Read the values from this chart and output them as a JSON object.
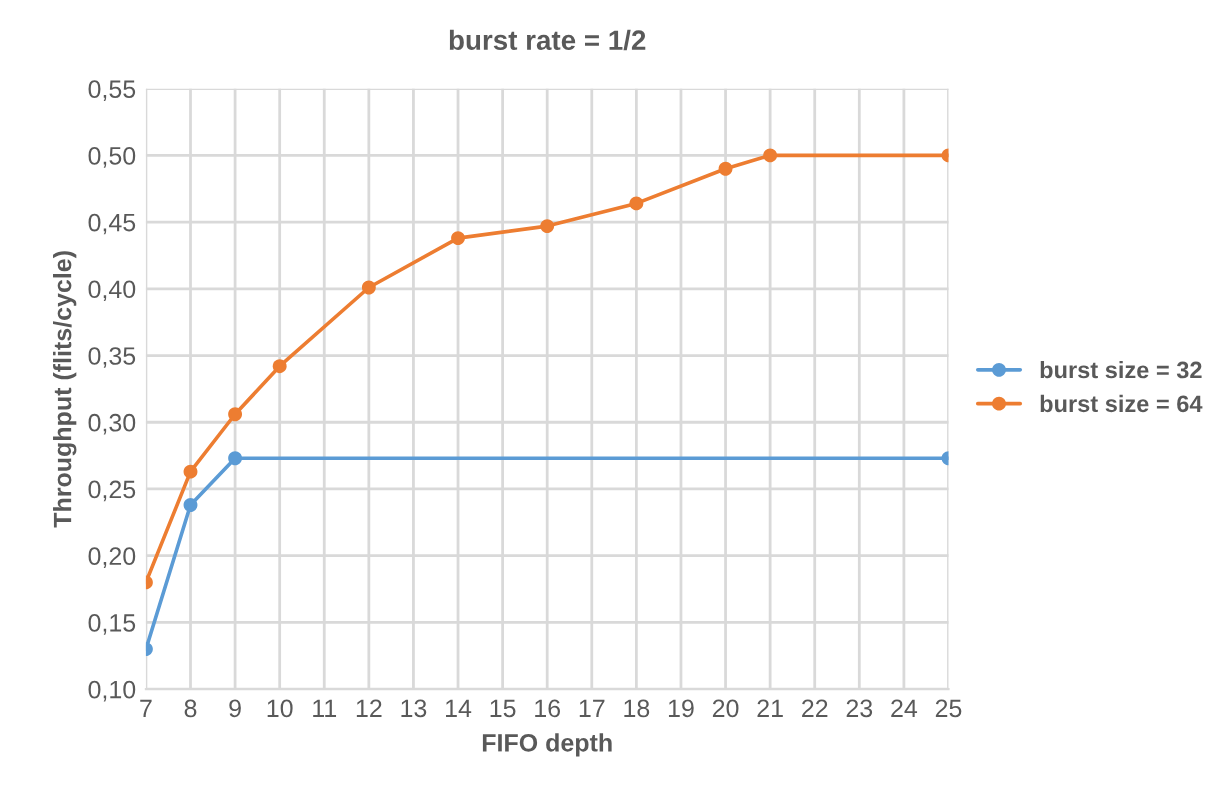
{
  "chart_data": {
    "type": "line",
    "title": "burst rate = 1/2",
    "xlabel": "FIFO depth",
    "ylabel": "Throughput (flits/cycle)",
    "series": [
      {
        "name": "burst size = 32",
        "color": "#5b9bd5",
        "x": [
          7,
          8,
          9,
          25
        ],
        "values": [
          0.13,
          0.238,
          0.273,
          0.273
        ]
      },
      {
        "name": "burst size = 64",
        "color": "#ed7d31",
        "x": [
          7,
          8,
          9,
          10,
          12,
          14,
          16,
          18,
          20,
          21,
          25
        ],
        "values": [
          0.18,
          0.263,
          0.306,
          0.342,
          0.401,
          0.438,
          0.447,
          0.464,
          0.49,
          0.5,
          0.5
        ]
      }
    ],
    "xlim": [
      7,
      25
    ],
    "xticks": [
      7,
      8,
      9,
      10,
      11,
      12,
      13,
      14,
      15,
      16,
      17,
      18,
      19,
      20,
      21,
      22,
      23,
      24,
      25
    ],
    "ylim": [
      0.1,
      0.55
    ],
    "yticks": [
      {
        "value": 0.1,
        "label": "0,10"
      },
      {
        "value": 0.15,
        "label": "0,15"
      },
      {
        "value": 0.2,
        "label": "0,20"
      },
      {
        "value": 0.25,
        "label": "0,25"
      },
      {
        "value": 0.3,
        "label": "0,30"
      },
      {
        "value": 0.35,
        "label": "0,35"
      },
      {
        "value": 0.4,
        "label": "0,40"
      },
      {
        "value": 0.45,
        "label": "0,45"
      },
      {
        "value": 0.5,
        "label": "0,50"
      },
      {
        "value": 0.55,
        "label": "0,55"
      }
    ],
    "grid": true,
    "legend": "right",
    "marker": "circle",
    "line_style": "solid"
  }
}
